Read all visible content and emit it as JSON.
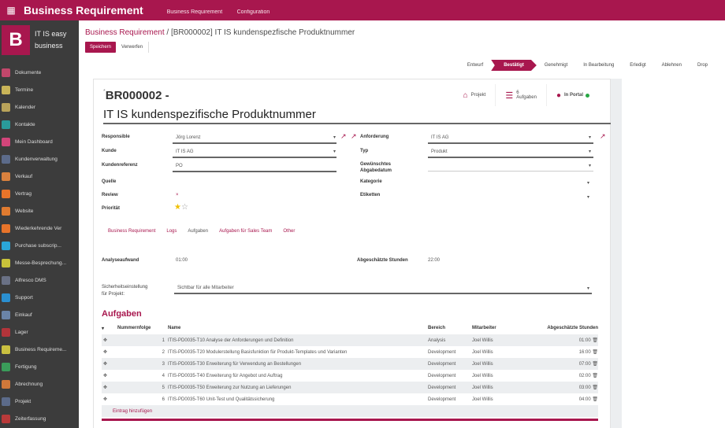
{
  "topbar": {
    "app_title": "Business Requirement",
    "menu": [
      "Business Requirement",
      "Configuration"
    ]
  },
  "sidebar": {
    "logo_letter": "B",
    "company_line1": "IT IS easy",
    "company_line2": "business",
    "items": [
      {
        "label": "Dokumente",
        "color": "#c2476b"
      },
      {
        "label": "Termine",
        "color": "#c9b458"
      },
      {
        "label": "Kalender",
        "color": "#b9a35a"
      },
      {
        "label": "Kontakte",
        "color": "#2a9b9b"
      },
      {
        "label": "Mein Dashboard",
        "color": "#d2457a"
      },
      {
        "label": "Kundenverwaltung",
        "color": "#5c6b8a"
      },
      {
        "label": "Verkauf",
        "color": "#d9813e"
      },
      {
        "label": "Vertrag",
        "color": "#e8742a"
      },
      {
        "label": "Website",
        "color": "#e07b30"
      },
      {
        "label": "Wiederkehrende Ver",
        "color": "#e8742a"
      },
      {
        "label": "Purchase subscrip...",
        "color": "#2aa6d8"
      },
      {
        "label": "Messe-Besprechung...",
        "color": "#c8c23a"
      },
      {
        "label": "Alfresco DMS",
        "color": "#6a7185"
      },
      {
        "label": "Support",
        "color": "#2a8fd0"
      },
      {
        "label": "Einkauf",
        "color": "#6a84a8"
      },
      {
        "label": "Lager",
        "color": "#b2343a"
      },
      {
        "label": "Business Requireme...",
        "color": "#c9c040"
      },
      {
        "label": "Fertigung",
        "color": "#3a9c5a"
      },
      {
        "label": "Abrechnung",
        "color": "#d0783a"
      },
      {
        "label": "Projekt",
        "color": "#5c6b8a"
      },
      {
        "label": "Zeiterfassung",
        "color": "#b93a3a"
      }
    ]
  },
  "breadcrumb": {
    "parent": "Business Requirement",
    "separator": "/",
    "current": "[BR000002] IT IS kundenspezfische Produktnummer"
  },
  "buttons": {
    "save": "Speichern",
    "discard": "Verwerfen"
  },
  "statusbar": {
    "stages": [
      "Entwurf",
      "Bestätigt",
      "Genehmigt",
      "In Bearbeitung",
      "Erledigt",
      "Ablehnen",
      "Drop"
    ],
    "active": "Bestätigt"
  },
  "smart_buttons": {
    "project": "Projekt",
    "tasks_count": "6",
    "tasks": "Aufgaben",
    "portal": "In Portal"
  },
  "form": {
    "reference": "BR000002 -",
    "name": "IT IS kundenspezifische Produktnummer",
    "left": {
      "responsible_label": "Responsible",
      "responsible": "Jörg Lorenz",
      "customer_label": "Kunde",
      "customer": "IT IS AG",
      "customer_ref_label": "Kundenreferenz",
      "customer_ref": "PO",
      "source_label": "Quelle",
      "reviewer_label": "Review",
      "reviewer": "×",
      "priority_label": "Priorität",
      "priority_stars": 1,
      "priority_max": 2
    },
    "right": {
      "requested_by_label": "Anforderung",
      "requested_by": "IT IS AG",
      "type_label": "Typ",
      "type": "Produkt",
      "desired_date_label": "Gewünschtes Abgabedatum",
      "category_label": "Kategorie",
      "labels_label": "Etiketten"
    },
    "tabs": [
      "Business Requirement",
      "Logs",
      "Aufgaben",
      "Aufgaben für Sales Team",
      "Other"
    ],
    "active_tab": "Aufgaben",
    "analysis_label": "Analyseaufwand",
    "analysis": "01:00",
    "estimated_label": "Abgeschätzte Stunden",
    "estimated": "22:00",
    "security_label_1": "Sicherheitseinstellung",
    "security_label_2": "für Projekt:",
    "security": "Sichtbar für alle Mitarbeiter"
  },
  "tasks": {
    "title": "Aufgaben",
    "columns": [
      "Nummernfolge",
      "Name",
      "Bereich",
      "Mitarbeiter",
      "Abgeschätzte Stunden"
    ],
    "rows": [
      {
        "seq": "1",
        "name": "ITIS-PD0035-T10 Analyse der Anforderungen und Definition",
        "area": "Analysis",
        "employee": "Joel Willis",
        "hours": "01:00"
      },
      {
        "seq": "2",
        "name": "ITIS-PD0035-T20 Modulerstellung Basisfunktion für Produkt-Templates und Varianten",
        "area": "Development",
        "employee": "Joel Willis",
        "hours": "16:00"
      },
      {
        "seq": "3",
        "name": "ITIS-PD0035-T30 Erweiterung für Verwendung an Bestellungen",
        "area": "Development",
        "employee": "Joel Willis",
        "hours": "07:00"
      },
      {
        "seq": "4",
        "name": "ITIS-PD0035-T40 Erweiterung für Angebot und Auftrag",
        "area": "Development",
        "employee": "Joel Willis",
        "hours": "02:00"
      },
      {
        "seq": "5",
        "name": "ITIS-PD0035-T50 Erweiterung zur Nutzung an Lieferungen",
        "area": "Development",
        "employee": "Joel Willis",
        "hours": "03:00"
      },
      {
        "seq": "6",
        "name": "ITIS-PD0035-T60 Unit-Test und Qualitätssicherung",
        "area": "Development",
        "employee": "Joel Willis",
        "hours": "04:00"
      }
    ],
    "add_line": "Eintrag hinzufügen"
  },
  "colors": {
    "brand": "#a8174e",
    "sidebar": "#3c3c3c",
    "portal_dot": "#28a745",
    "star": "#f0c000"
  }
}
